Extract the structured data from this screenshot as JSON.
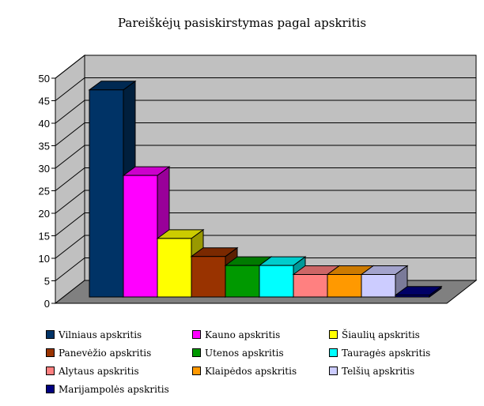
{
  "chart_data": {
    "type": "bar",
    "title": "Pareiškėjų pasiskirstymas pagal apskritis",
    "xlabel": "",
    "ylabel": "",
    "ylim": [
      0,
      50
    ],
    "yticks": [
      "0",
      "5",
      "10",
      "15",
      "20",
      "25",
      "30",
      "35",
      "40",
      "45",
      "50"
    ],
    "grid": true,
    "three_d": true,
    "legend_position": "bottom",
    "series": [
      {
        "name": "Vilniaus apskritis",
        "value": 46,
        "color": "#003366"
      },
      {
        "name": "Kauno apskritis",
        "value": 27,
        "color": "#ff00ff"
      },
      {
        "name": "Šiaulių apskritis",
        "value": 13,
        "color": "#ffff00"
      },
      {
        "name": "Panevėžio apskritis",
        "value": 9,
        "color": "#993300"
      },
      {
        "name": "Utenos apskritis",
        "value": 7,
        "color": "#009900"
      },
      {
        "name": "Tauragės apskritis",
        "value": 7,
        "color": "#00ffff"
      },
      {
        "name": "Alytaus apskritis",
        "value": 5,
        "color": "#ff8080"
      },
      {
        "name": "Klaipėdos apskritis",
        "value": 5,
        "color": "#ff9900"
      },
      {
        "name": "Telšių apskritis",
        "value": 5,
        "color": "#ccccff"
      },
      {
        "name": "Marijampolės apskritis",
        "value": 0.4,
        "color": "#000080"
      }
    ]
  }
}
